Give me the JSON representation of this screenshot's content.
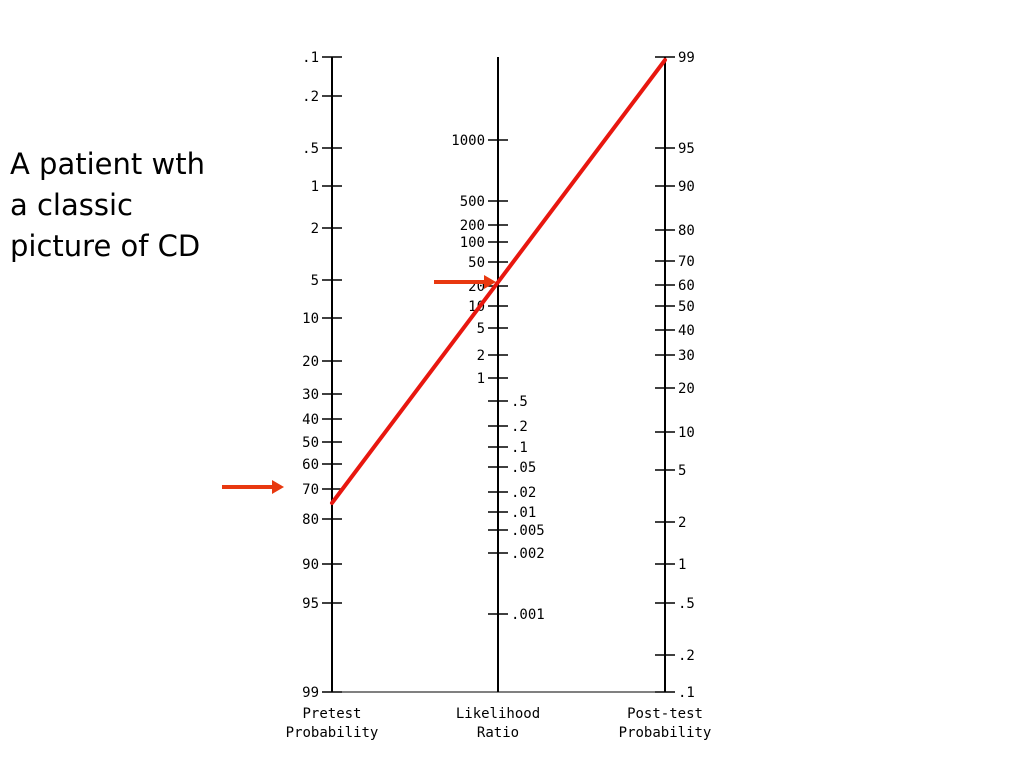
{
  "caption_lines": [
    "A patient wth",
    "a classic",
    "picture of CD"
  ],
  "axes": {
    "pretest": {
      "label_lines": [
        "Pretest",
        "Probability"
      ],
      "ticks": [
        ".1",
        ".2",
        ".5",
        "1",
        "2",
        "5",
        "10",
        "20",
        "30",
        "40",
        "50",
        "60",
        "70",
        "80",
        "90",
        "95",
        "99"
      ]
    },
    "likelihood": {
      "label_lines": [
        "Likelihood",
        "Ratio"
      ],
      "ticks": [
        "1000",
        "500",
        "200",
        "100",
        "50",
        "20",
        "10",
        "5",
        "2",
        "1",
        ".5",
        ".2",
        ".1",
        ".05",
        ".02",
        ".01",
        ".005",
        ".002",
        ".001"
      ]
    },
    "posttest": {
      "label_lines": [
        "Post-test",
        "Probability"
      ],
      "ticks": [
        "99",
        "95",
        "90",
        "80",
        "70",
        "60",
        "50",
        "40",
        "30",
        "20",
        "10",
        "5",
        "2",
        "1",
        ".5",
        ".2",
        ".1"
      ]
    }
  },
  "colors": {
    "axis": "#000000",
    "nomogram_line": "#e8170f",
    "arrow": "#e8380f"
  },
  "annotations": [
    {
      "type": "arrow",
      "points_to": "pretest",
      "value": 75
    },
    {
      "type": "arrow",
      "points_to": "likelihood",
      "value": 25
    }
  ],
  "nomogram_line": {
    "pretest_probability": 75,
    "likelihood_ratio": 25,
    "posttest_probability": 99
  }
}
